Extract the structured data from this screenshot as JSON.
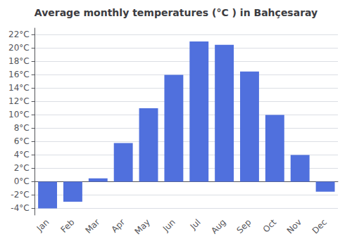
{
  "chart_data": {
    "type": "bar",
    "title": "Average monthly temperatures (°C ) in Bahçesaray",
    "categories": [
      "Jan",
      "Feb",
      "Mar",
      "Apr",
      "May",
      "Jun",
      "Jul",
      "Aug",
      "Sep",
      "Oct",
      "Nov",
      "Dec"
    ],
    "values": [
      -4.0,
      -3.0,
      0.5,
      5.8,
      11.0,
      16.0,
      21.0,
      20.5,
      16.5,
      10.0,
      4.0,
      -1.5
    ],
    "ylim": [
      -5,
      23
    ],
    "yticks": [
      {
        "value": -4,
        "label": "-4°C"
      },
      {
        "value": -2,
        "label": "-2°C"
      },
      {
        "value": 0,
        "label": "0°C"
      },
      {
        "value": 2,
        "label": "2°C"
      },
      {
        "value": 4,
        "label": "4°C"
      },
      {
        "value": 6,
        "label": "6°C"
      },
      {
        "value": 8,
        "label": "8°C"
      },
      {
        "value": 10,
        "label": "10°C"
      },
      {
        "value": 12,
        "label": "12°C"
      },
      {
        "value": 14,
        "label": "14°C"
      },
      {
        "value": 16,
        "label": "16°C"
      },
      {
        "value": 18,
        "label": "18°C"
      },
      {
        "value": 20,
        "label": "20°C"
      },
      {
        "value": 22,
        "label": "22°C"
      }
    ],
    "grid": true
  }
}
